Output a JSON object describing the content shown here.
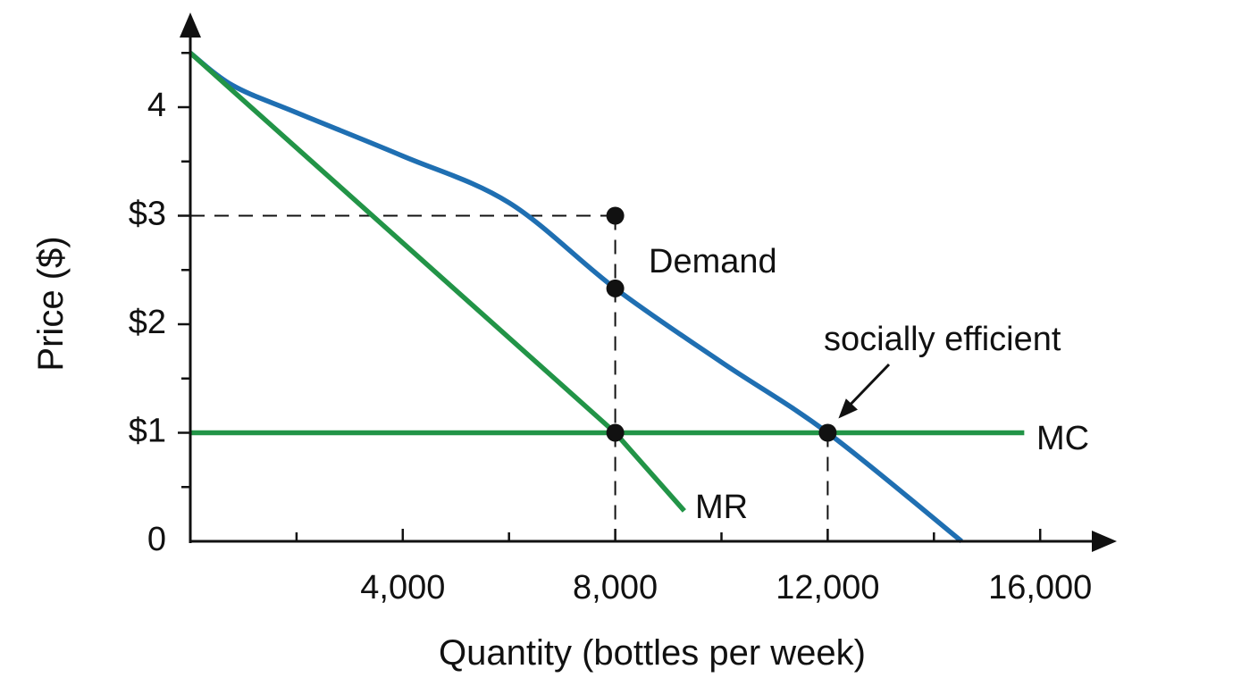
{
  "chart_data": {
    "type": "line",
    "xlabel": "Quantity (bottles per week)",
    "ylabel": "Price ($)",
    "xlim": [
      0,
      17500
    ],
    "ylim": [
      0,
      4.8
    ],
    "x_ticks": [
      {
        "value": 4000,
        "label": "4,000"
      },
      {
        "value": 8000,
        "label": "8,000"
      },
      {
        "value": 12000,
        "label": "12,000"
      },
      {
        "value": 16000,
        "label": "16,000"
      }
    ],
    "x_minor_ticks": [
      2000,
      6000,
      10000,
      14000
    ],
    "y_ticks": [
      {
        "value": 0,
        "label": "0"
      },
      {
        "value": 1,
        "label": "$1"
      },
      {
        "value": 2,
        "label": "$2"
      },
      {
        "value": 3,
        "label": "$3"
      },
      {
        "value": 4,
        "label": "4"
      }
    ],
    "y_minor_ticks": [
      0.5,
      1.5,
      2.5,
      3.5,
      4.5
    ],
    "colors": {
      "demand": "#1f6fb2",
      "mr": "#229447",
      "mc": "#229447",
      "axis": "#111111"
    },
    "series": [
      {
        "key": "demand",
        "name": "Demand",
        "color": "#1f6fb2",
        "points": [
          [
            0,
            4.5
          ],
          [
            800,
            4.2
          ],
          [
            2000,
            3.95
          ],
          [
            4000,
            3.55
          ],
          [
            6000,
            3.12
          ],
          [
            8000,
            2.33
          ],
          [
            10000,
            1.65
          ],
          [
            12000,
            1.0
          ],
          [
            14520,
            0.0
          ]
        ]
      },
      {
        "key": "mr",
        "name": "MR",
        "color": "#229447",
        "points": [
          [
            0,
            4.5
          ],
          [
            8000,
            1.0
          ],
          [
            9300,
            0.28
          ]
        ]
      },
      {
        "key": "mc",
        "name": "MC",
        "color": "#229447",
        "points": [
          [
            0,
            1.0
          ],
          [
            15700,
            1.0
          ]
        ]
      }
    ],
    "points": [
      {
        "x": 8000,
        "y": 3.0
      },
      {
        "x": 8000,
        "y": 2.33
      },
      {
        "x": 8000,
        "y": 1.0
      },
      {
        "x": 12000,
        "y": 1.0
      }
    ],
    "guides": [
      {
        "from": [
          0,
          3.0
        ],
        "to": [
          8000,
          3.0
        ]
      },
      {
        "from": [
          8000,
          3.0
        ],
        "to": [
          8000,
          0
        ]
      },
      {
        "from": [
          12000,
          1.0
        ],
        "to": [
          12000,
          0
        ]
      }
    ],
    "annotations": [
      {
        "key": "socially-efficient",
        "text": "socially efficient",
        "points_to": [
          12000,
          1.0
        ]
      }
    ]
  }
}
